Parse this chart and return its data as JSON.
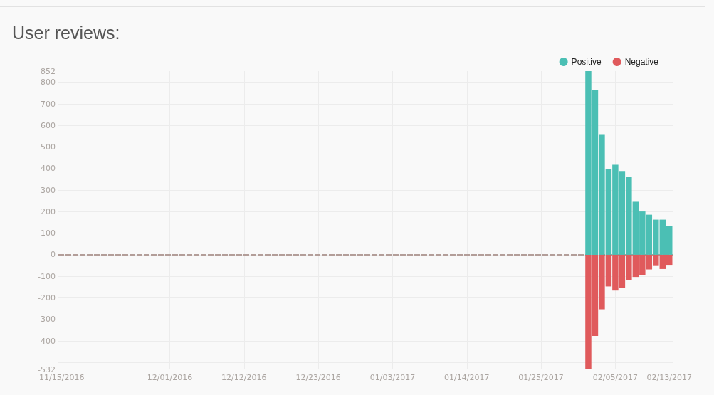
{
  "chart_data": {
    "type": "bar",
    "title": "User reviews:",
    "x": [
      "2017-02-01",
      "2017-02-02",
      "2017-02-03",
      "2017-02-04",
      "2017-02-05",
      "2017-02-06",
      "2017-02-07",
      "2017-02-08",
      "2017-02-09",
      "2017-02-10",
      "2017-02-11",
      "2017-02-12",
      "2017-02-13"
    ],
    "series": [
      {
        "name": "Positive",
        "color": "#4bbfb4",
        "values": [
          852,
          766,
          560,
          399,
          418,
          389,
          362,
          246,
          201,
          186,
          163,
          163,
          135
        ]
      },
      {
        "name": "Negative",
        "color": "#e05a5c",
        "values": [
          -532,
          -377,
          -253,
          -147,
          -166,
          -155,
          -117,
          -103,
          -96,
          -68,
          -52,
          -66,
          -50
        ]
      }
    ],
    "stacked": true,
    "xlim": [
      "2016-11-14T12:00",
      "2017-02-13T12:00"
    ],
    "xticks": [
      {
        "value": "2016-11-15",
        "label": "11/15/2016"
      },
      {
        "value": "2016-12-01",
        "label": "12/01/2016"
      },
      {
        "value": "2016-12-12",
        "label": "12/12/2016"
      },
      {
        "value": "2016-12-23",
        "label": "12/23/2016"
      },
      {
        "value": "2017-01-03",
        "label": "01/03/2017"
      },
      {
        "value": "2017-01-14",
        "label": "01/14/2017"
      },
      {
        "value": "2017-01-25",
        "label": "01/25/2017"
      },
      {
        "value": "2017-02-05",
        "label": "02/05/2017"
      },
      {
        "value": "2017-02-13",
        "label": "02/13/2017"
      }
    ],
    "ylim": [
      -532,
      852
    ],
    "yticks": [
      852,
      800,
      700,
      600,
      500,
      400,
      300,
      200,
      100,
      0,
      -100,
      -200,
      -300,
      -400,
      {
        "value": -500,
        "label": null
      },
      -532
    ],
    "ref_lines": [
      {
        "axis": "y",
        "value": 0,
        "color": "#b39e99",
        "line_style": "dashed"
      }
    ],
    "grid": true,
    "legend": "top right"
  }
}
